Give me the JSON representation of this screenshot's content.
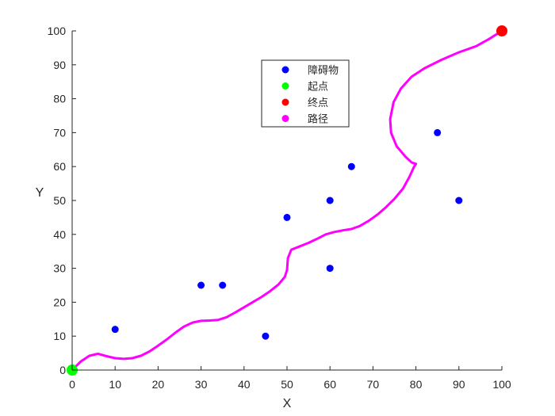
{
  "chart_data": {
    "type": "scatter",
    "xlabel": "X",
    "ylabel": "Y",
    "xlim": [
      0,
      100
    ],
    "ylim": [
      0,
      100
    ],
    "x_ticks": [
      0,
      10,
      20,
      30,
      40,
      50,
      60,
      70,
      80,
      90,
      100
    ],
    "y_ticks": [
      0,
      10,
      20,
      30,
      40,
      50,
      60,
      70,
      80,
      90,
      100
    ],
    "grid": false,
    "legend_position": "top-center",
    "series": [
      {
        "name": "障碍物",
        "kind": "scatter",
        "color": "#0000ff",
        "points": [
          [
            10,
            12
          ],
          [
            30,
            25
          ],
          [
            35,
            25
          ],
          [
            45,
            10
          ],
          [
            50,
            45
          ],
          [
            60,
            30
          ],
          [
            60,
            50
          ],
          [
            65,
            60
          ],
          [
            85,
            70
          ],
          [
            90,
            50
          ]
        ]
      },
      {
        "name": "起点",
        "kind": "scatter",
        "color": "#00ff00",
        "points": [
          [
            0,
            0
          ]
        ]
      },
      {
        "name": "终点",
        "kind": "scatter",
        "color": "#ff0000",
        "points": [
          [
            100,
            100
          ]
        ]
      },
      {
        "name": "路径",
        "kind": "line",
        "color": "#ff00ff",
        "points": [
          [
            0,
            0
          ],
          [
            2,
            2.5
          ],
          [
            4,
            4.2
          ],
          [
            6,
            4.8
          ],
          [
            8,
            4.1
          ],
          [
            10,
            3.5
          ],
          [
            12,
            3.3
          ],
          [
            14,
            3.5
          ],
          [
            16,
            4.2
          ],
          [
            18,
            5.5
          ],
          [
            20,
            7.2
          ],
          [
            22,
            9
          ],
          [
            24,
            11
          ],
          [
            26,
            12.8
          ],
          [
            28,
            14
          ],
          [
            30,
            14.5
          ],
          [
            32,
            14.6
          ],
          [
            34,
            14.8
          ],
          [
            36,
            15.6
          ],
          [
            38,
            17
          ],
          [
            40,
            18.5
          ],
          [
            42,
            20
          ],
          [
            44,
            21.5
          ],
          [
            46,
            23.2
          ],
          [
            48,
            25.2
          ],
          [
            49.5,
            27.5
          ],
          [
            50,
            29.5
          ],
          [
            50.2,
            33
          ],
          [
            51,
            35.5
          ],
          [
            53,
            36.5
          ],
          [
            55,
            37.5
          ],
          [
            57,
            38.7
          ],
          [
            59,
            40
          ],
          [
            61,
            40.7
          ],
          [
            63,
            41.2
          ],
          [
            65,
            41.6
          ],
          [
            67,
            42.5
          ],
          [
            69,
            44
          ],
          [
            71,
            45.8
          ],
          [
            73,
            48
          ],
          [
            75,
            50.5
          ],
          [
            77,
            53.5
          ],
          [
            78.5,
            57
          ],
          [
            79.5,
            59.8
          ],
          [
            80,
            60.8
          ],
          [
            79,
            61.2
          ],
          [
            77.5,
            63
          ],
          [
            75.5,
            66
          ],
          [
            74.2,
            70
          ],
          [
            74,
            74
          ],
          [
            74.8,
            79
          ],
          [
            76.5,
            83
          ],
          [
            79,
            86.5
          ],
          [
            82,
            89
          ],
          [
            86,
            91.5
          ],
          [
            90,
            93.7
          ],
          [
            94,
            95.5
          ],
          [
            97,
            97.6
          ],
          [
            100,
            100
          ]
        ]
      }
    ]
  }
}
